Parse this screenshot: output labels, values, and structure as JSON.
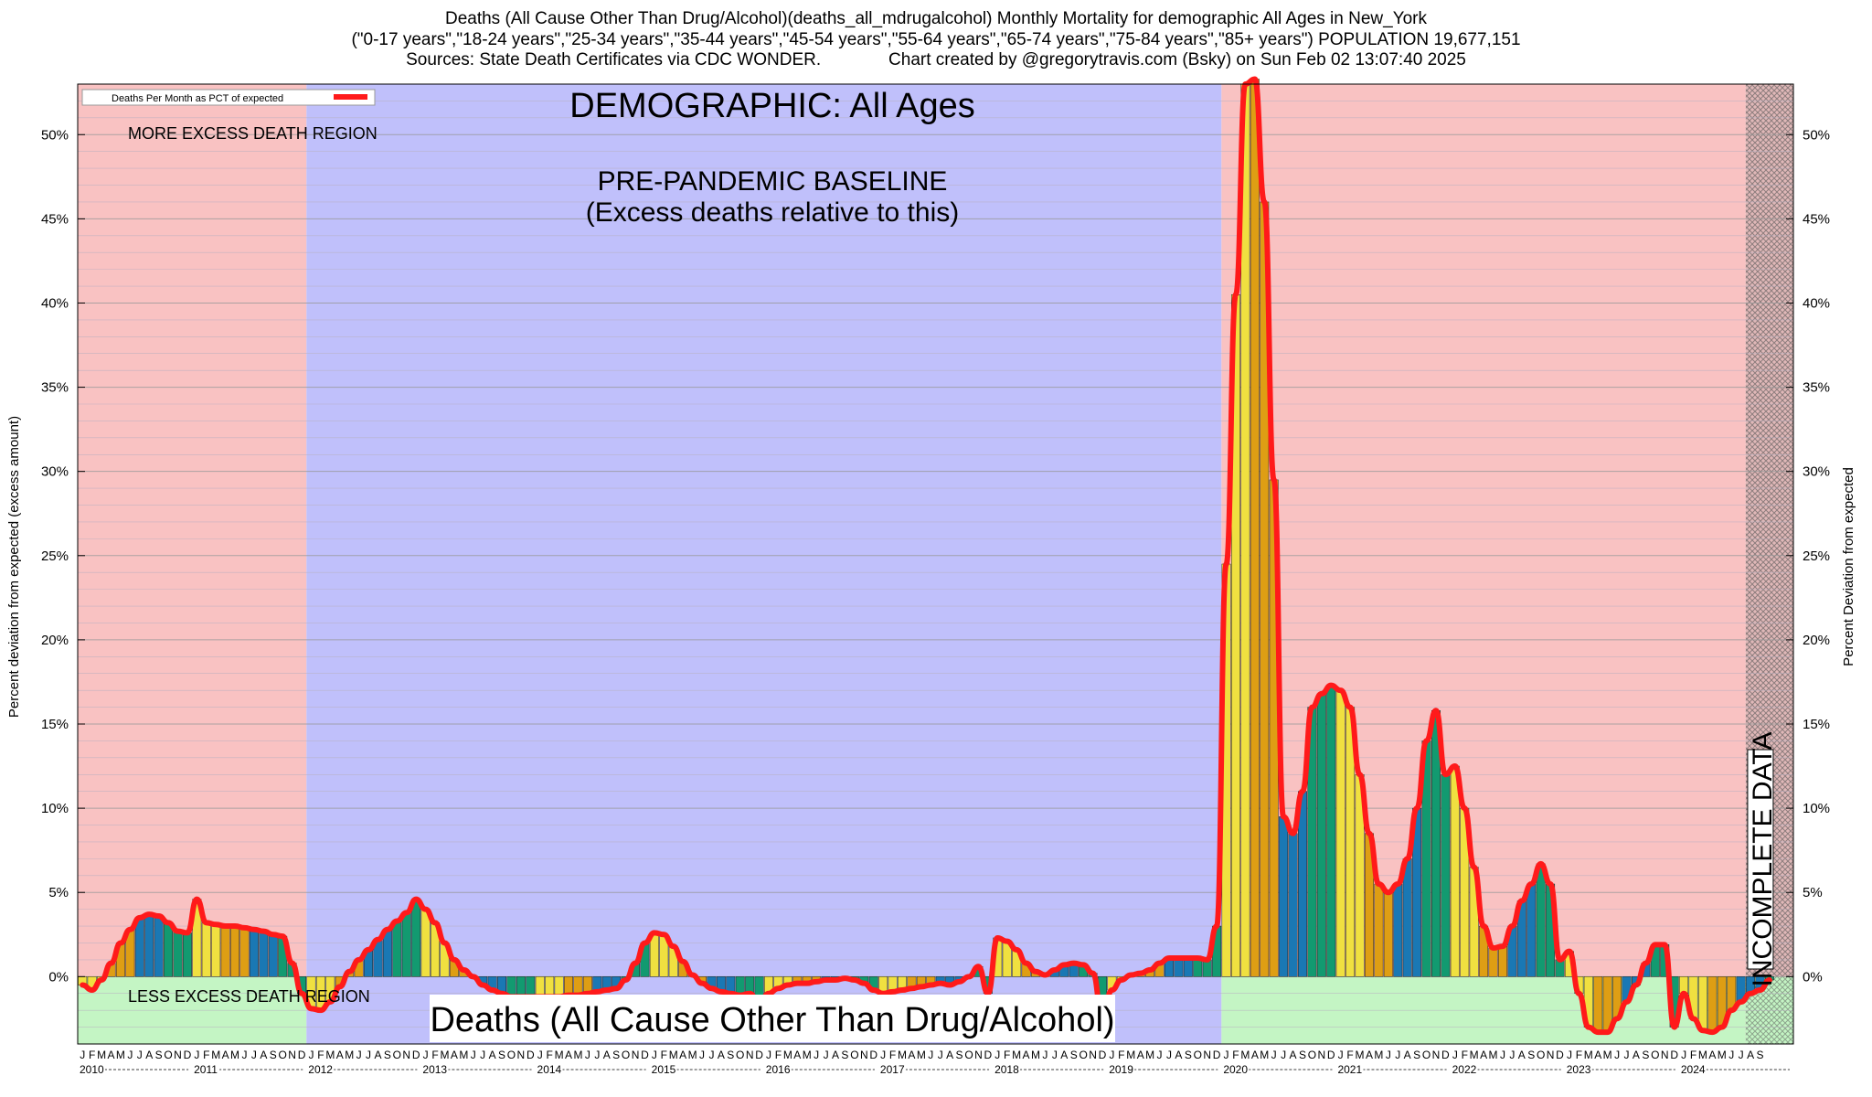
{
  "header": {
    "line1": "Deaths (All Cause Other Than Drug/Alcohol)(deaths_all_mdrugalcohol) Monthly Mortality for demographic All Ages in New_York",
    "line2": "(\"0-17 years\",\"18-24 years\",\"25-34 years\",\"35-44 years\",\"45-54 years\",\"55-64 years\",\"65-74 years\",\"75-84 years\",\"85+ years\") POPULATION 19,677,151",
    "line3": "Sources: State Death Certificates via CDC WONDER.              Chart created by @gregorytravis.com (Bsky) on Sun Feb 02 13:07:40 2025"
  },
  "labels": {
    "legend": "Deaths Per Month as PCT of expected",
    "more_excess": "MORE EXCESS DEATH REGION",
    "less_excess": "LESS EXCESS DEATH REGION",
    "demographic": "DEMOGRAPHIC: All Ages",
    "baseline_1": "PRE-PANDEMIC BASELINE",
    "baseline_2": "(Excess deaths relative to this)",
    "bottom_title": "Deaths (All Cause Other Than Drug/Alcohol)",
    "incomplete": "INCOMPLETE DATA",
    "ylabel_left": "Percent deviation from expected (excess amount)",
    "ylabel_right": "Percent Deviation from expected"
  },
  "chart_data": {
    "type": "bar",
    "start": "2010-01",
    "ylim": [
      -4,
      53
    ],
    "yticks": [
      0,
      5,
      10,
      15,
      20,
      25,
      30,
      35,
      40,
      45,
      50
    ],
    "ytick_labels": [
      "0%",
      "5%",
      "10%",
      "15%",
      "20%",
      "25%",
      "30%",
      "35%",
      "40%",
      "45%",
      "50%"
    ],
    "years": [
      "2010",
      "2011",
      "2012",
      "2013",
      "2014",
      "2015",
      "2016",
      "2017",
      "2018",
      "2019",
      "2020",
      "2021",
      "2022",
      "2023",
      "2024"
    ],
    "month_letters": [
      "J",
      "F",
      "M",
      "A",
      "M",
      "J",
      "J",
      "A",
      "S",
      "O",
      "N",
      "D"
    ],
    "baseline_period": [
      "2012-01",
      "2019-12"
    ],
    "incomplete_from": "2024-08",
    "values": [
      -0.5,
      -0.8,
      -0.2,
      0.8,
      2.0,
      2.8,
      3.5,
      3.7,
      3.6,
      3.2,
      2.7,
      2.6,
      4.6,
      3.2,
      3.1,
      3.0,
      3.0,
      2.9,
      2.8,
      2.7,
      2.5,
      2.4,
      0.8,
      -1.0,
      -1.9,
      -2.0,
      -1.5,
      -0.6,
      0.3,
      1.0,
      1.6,
      2.2,
      2.8,
      3.3,
      3.8,
      4.6,
      4.0,
      3.2,
      2.0,
      1.0,
      0.4,
      0.0,
      -0.5,
      -0.8,
      -1.0,
      -1.2,
      -1.2,
      -1.2,
      -1.2,
      -1.2,
      -1.2,
      -1.1,
      -1.1,
      -1.0,
      -0.9,
      -0.8,
      -0.7,
      -0.2,
      0.8,
      2.0,
      2.6,
      2.5,
      1.8,
      0.9,
      0.1,
      -0.4,
      -0.7,
      -0.9,
      -1.0,
      -1.1,
      -1.0,
      -1.6,
      -1.0,
      -0.7,
      -0.5,
      -0.4,
      -0.4,
      -0.3,
      -0.2,
      -0.2,
      -0.1,
      -0.2,
      -0.4,
      -0.8,
      -1.0,
      -0.9,
      -0.8,
      -0.7,
      -0.6,
      -0.5,
      -0.4,
      -0.5,
      -0.3,
      0.0,
      0.6,
      -1.0,
      2.3,
      2.1,
      1.6,
      0.8,
      0.3,
      0.1,
      0.4,
      0.7,
      0.8,
      0.7,
      0.2,
      -2.4,
      -0.8,
      -0.2,
      0.1,
      0.2,
      0.4,
      0.8,
      1.1,
      1.1,
      1.1,
      1.1,
      1.0,
      3.0,
      24.5,
      40.5,
      53.0,
      53.3,
      46.0,
      29.5,
      9.5,
      8.5,
      11.0,
      16.0,
      16.8,
      17.3,
      17.0,
      16.0,
      12.0,
      8.5,
      5.5,
      5.0,
      5.5,
      7.0,
      10.0,
      14.0,
      15.8,
      12.0,
      12.5,
      10.0,
      6.5,
      3.0,
      1.7,
      1.8,
      3.0,
      4.5,
      5.5,
      6.7,
      5.5,
      1.0,
      1.5,
      -1.0,
      -3.0,
      -3.3,
      -3.3,
      -2.5,
      -1.5,
      -0.5,
      0.8,
      1.9,
      1.9,
      -3.0,
      -1.0,
      -2.5,
      -3.2,
      -3.3,
      -3.0,
      -2.0,
      -1.5,
      -1.0,
      -0.8,
      -0.2
    ]
  },
  "colors": {
    "excess_region": "#f9c2c2",
    "less_region": "#c4f5c4",
    "baseline_region": "#c0c0fb",
    "line": "#ff1a1a",
    "bar_palette": [
      "#f0e040",
      "#de9e14",
      "#1a78b4",
      "#129a70"
    ]
  }
}
